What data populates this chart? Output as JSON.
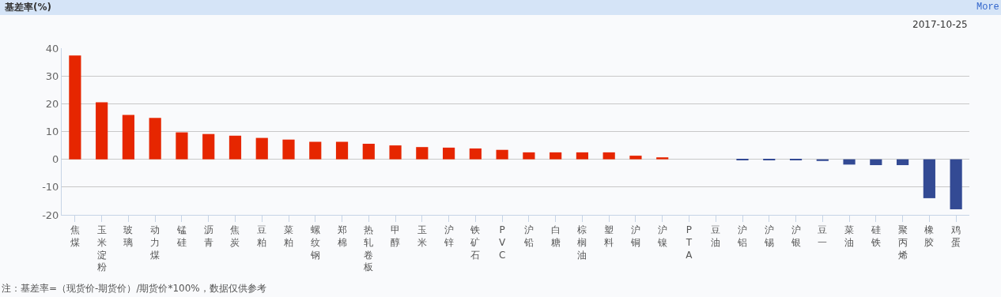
{
  "chart_data": {
    "type": "bar",
    "title": "基差率(%)",
    "subtitle": "2017-10-25",
    "categories": [
      "焦煤",
      "玉米淀粉",
      "玻璃",
      "动力煤",
      "锰硅",
      "沥青",
      "焦炭",
      "豆粕",
      "菜粕",
      "螺纹钢",
      "郑棉",
      "热轧卷板",
      "甲醇",
      "玉米",
      "沪锌",
      "铁矿石",
      "PVC",
      "沪铅",
      "白糖",
      "棕榈油",
      "塑料",
      "沪铜",
      "沪镍",
      "PTA",
      "豆油",
      "沪铝",
      "沪锡",
      "沪银",
      "豆一",
      "菜油",
      "硅铁",
      "聚丙烯",
      "橡胶",
      "鸡蛋"
    ],
    "values": [
      37.4,
      20.5,
      16.0,
      14.9,
      9.7,
      9.1,
      8.5,
      7.7,
      7.1,
      6.3,
      6.3,
      5.6,
      5.0,
      4.4,
      4.2,
      3.9,
      3.4,
      2.5,
      2.5,
      2.5,
      2.5,
      1.3,
      0.7,
      0,
      0,
      -0.3,
      -0.3,
      -0.3,
      -0.6,
      -1.9,
      -2.1,
      -2.1,
      -14.0,
      -18.0
    ],
    "colors": [
      "#e62600",
      "#e62600",
      "#e62600",
      "#e62600",
      "#e62600",
      "#e62600",
      "#e62600",
      "#e62600",
      "#e62600",
      "#e62600",
      "#e62600",
      "#e62600",
      "#e62600",
      "#e62600",
      "#e62600",
      "#e62600",
      "#e62600",
      "#e62600",
      "#e62600",
      "#e62600",
      "#e62600",
      "#e62600",
      "#e62600",
      "#e62600",
      "#334a94",
      "#334a94",
      "#334a94",
      "#334a94",
      "#334a94",
      "#334a94",
      "#334a94",
      "#334a94",
      "#334a94",
      "#334a94"
    ],
    "ylim": [
      -20,
      40
    ],
    "yticks": [
      -20,
      -10,
      0,
      10,
      20,
      30,
      40
    ],
    "grid": "y",
    "annotations": [
      "More",
      "注：基差率=（现货价-期货价）/期货价*100%，数据仅供参考"
    ]
  }
}
